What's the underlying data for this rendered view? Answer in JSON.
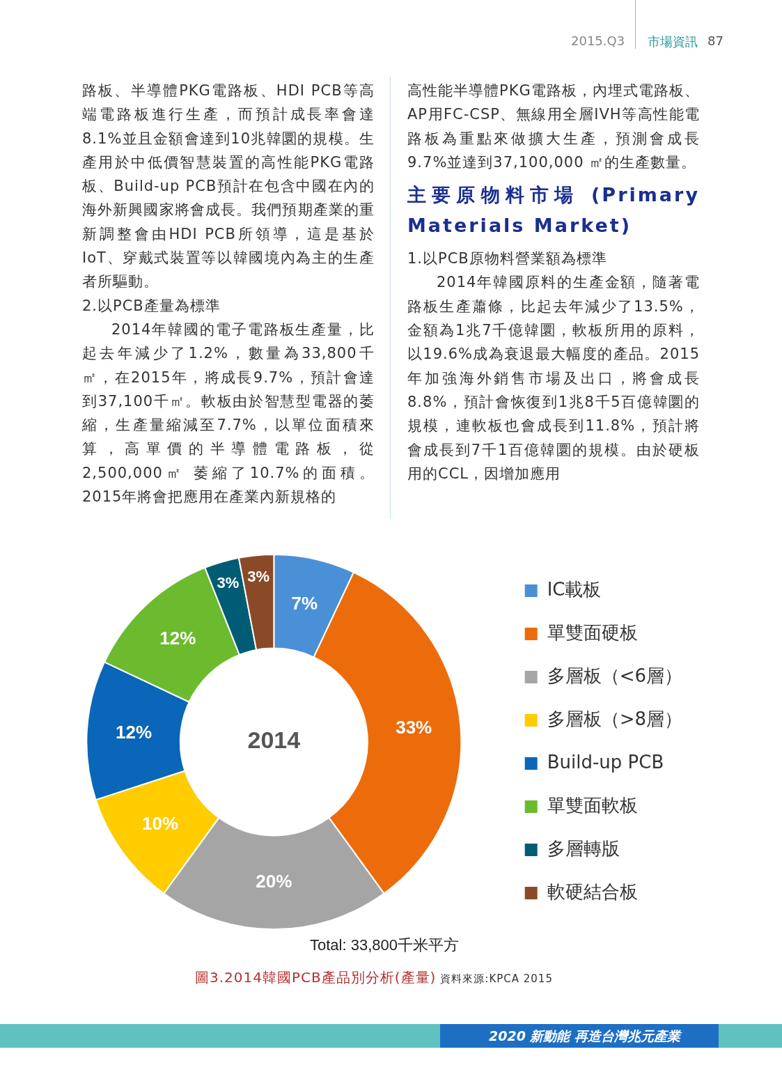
{
  "chart_data": {
    "type": "donut",
    "title": "圖3.2014韓國PCB產品別分析(產量)",
    "legend": "right",
    "categories": [
      "IC載板",
      "單雙面硬板",
      "多層板（<6層）",
      "多層板（>8層）",
      "Build-up PCB",
      "單雙面軟板",
      "多層轉版",
      "軟硬結合板"
    ],
    "values": [
      7,
      33,
      20,
      10,
      12,
      12,
      3,
      3
    ],
    "value_labels": [
      "7%",
      "33%",
      "20%",
      "10%",
      "12%",
      "12%",
      "3%",
      "3%"
    ],
    "colors": [
      "#4a90d6",
      "#ec6c0c",
      "#a5a5a5",
      "#ffcc00",
      "#0a66b8",
      "#6cba2e",
      "#005c74",
      "#8a4a28"
    ],
    "annotations": [
      "2014",
      "Total: 33,800千米平方",
      "資料來源:KPCA 2015",
      "2015.Q3",
      "市場資訊",
      "87",
      "路板、半導體PKG電路板、HDI PCB等高端電路板進行生產，而預計成長率會達8.1%並且金額會達到10兆韓圜的規模。生產用於中低價智慧裝置的高性能PKG電路板、Build-up PCB預計在包含中國在內的海外新興國家將會成長。我們預期產業的重新調整會由HDI PCB所領導，這是基於IoT、穿戴式裝置等以韓國境內為主的生產者所驅動。",
      "2.以PCB產量為標準",
      "2014年韓國的電子電路板生產量，比起去年減少了1.2%，數量為33,800千㎡，在2015年，將成長9.7%，預計會達到37,100千㎡。軟板由於智慧型電器的萎縮，生產量縮減至7.7%，以單位面積來算，高單價的半導體電路板，從2,500,000㎡ 萎縮了10.7%的面積。2015年將會把應用在產業內新規格的",
      "高性能半導體PKG電路板，內埋式電路板、AP用FC-CSP、無線用全層IVH等高性能電路板為重點來做擴大生產，預測會成長9.7%並達到37,100,000 ㎡的生產數量。",
      "主要原物料市場 (Primary Materials Market)",
      "1.以PCB原物料營業額為標準",
      "2014年韓國原料的生產金額，隨著電路板生產蕭條，比起去年減少了13.5%，金額為1兆7千億韓圜，軟板所用的原料，以19.6%成為衰退最大幅度的產品。2015年加強海外銷售市場及出口，將會成長8.8%，預計會恢復到1兆8千5百億韓圜的規模，連軟板也會成長到11.8%，預計將會成長到7千1百億韓圜的規模。由於硬板用的CCL，因增加應用",
      "2020 新動能 再造台灣兆元產業"
    ]
  }
}
